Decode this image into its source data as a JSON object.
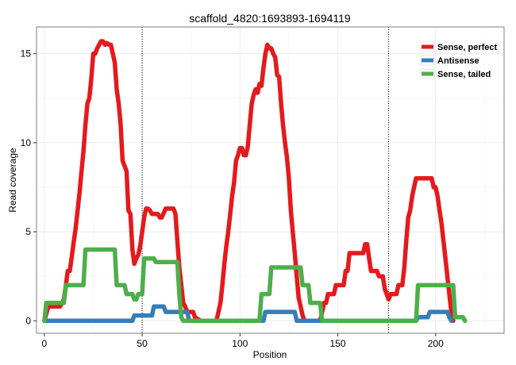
{
  "chart_data": {
    "type": "line",
    "title": "scaffold_4820:1693893-1694119",
    "xlabel": "Position",
    "ylabel": "Read coverage",
    "xlim": [
      -4,
      235
    ],
    "ylim": [
      -0.7,
      16.5
    ],
    "x_ticks": [
      0,
      50,
      100,
      150,
      200
    ],
    "y_ticks": [
      0,
      5,
      10,
      15
    ],
    "grid": true,
    "legend_position": "top-right",
    "vlines": [
      50,
      176
    ],
    "series": [
      {
        "name": "Sense, perfect",
        "color": "#e41a1c",
        "points": [
          [
            0,
            0
          ],
          [
            2,
            0.8
          ],
          [
            8,
            0.8
          ],
          [
            10,
            1.2
          ],
          [
            11,
            2
          ],
          [
            12,
            2.8
          ],
          [
            13,
            2.8
          ],
          [
            14,
            3.6
          ],
          [
            15,
            4.4
          ],
          [
            16,
            5.2
          ],
          [
            17,
            6.2
          ],
          [
            18,
            7.2
          ],
          [
            19,
            8.4
          ],
          [
            20,
            9.5
          ],
          [
            21,
            11
          ],
          [
            22,
            12.2
          ],
          [
            23,
            12.5
          ],
          [
            24,
            13.6
          ],
          [
            25,
            15
          ],
          [
            26,
            15
          ],
          [
            27,
            15.3
          ],
          [
            28,
            15.5
          ],
          [
            29,
            15.7
          ],
          [
            30,
            15.7
          ],
          [
            31,
            15.5
          ],
          [
            32,
            15.6
          ],
          [
            33,
            15.5
          ],
          [
            34,
            15.5
          ],
          [
            35,
            15
          ],
          [
            36,
            14.5
          ],
          [
            37,
            13
          ],
          [
            38,
            12.2
          ],
          [
            39,
            11
          ],
          [
            40,
            9
          ],
          [
            41,
            8.7
          ],
          [
            42,
            8.4
          ],
          [
            43,
            6.2
          ],
          [
            44,
            6
          ],
          [
            45,
            4
          ],
          [
            46,
            3.2
          ],
          [
            47,
            3.5
          ],
          [
            48,
            3.7
          ],
          [
            49,
            4.2
          ],
          [
            50,
            5
          ],
          [
            51,
            5.8
          ],
          [
            52,
            6.3
          ],
          [
            53,
            6.3
          ],
          [
            54,
            6.2
          ],
          [
            55,
            6
          ],
          [
            58,
            6
          ],
          [
            59,
            5.8
          ],
          [
            60,
            5.8
          ],
          [
            62,
            6.3
          ],
          [
            66,
            6.3
          ],
          [
            67,
            6
          ],
          [
            68,
            4.5
          ],
          [
            69,
            3
          ],
          [
            70,
            2
          ],
          [
            71,
            1
          ],
          [
            72,
            0.8
          ],
          [
            73,
            0.5
          ],
          [
            76,
            0.5
          ],
          [
            77,
            0.2
          ],
          [
            80,
            0
          ],
          [
            88,
            0
          ],
          [
            89,
            0.5
          ],
          [
            90,
            1
          ],
          [
            91,
            2
          ],
          [
            92,
            3.2
          ],
          [
            93,
            4.2
          ],
          [
            94,
            5
          ],
          [
            95,
            6
          ],
          [
            96,
            7
          ],
          [
            97,
            7.8
          ],
          [
            98,
            9
          ],
          [
            99,
            9.3
          ],
          [
            100,
            9.7
          ],
          [
            101,
            9.7
          ],
          [
            102,
            9.3
          ],
          [
            103,
            9.3
          ],
          [
            104,
            9.8
          ],
          [
            105,
            11
          ],
          [
            106,
            12.2
          ],
          [
            107,
            12.7
          ],
          [
            108,
            13
          ],
          [
            109,
            12.8
          ],
          [
            110,
            13.3
          ],
          [
            111,
            13.2
          ],
          [
            112,
            14.2
          ],
          [
            113,
            15
          ],
          [
            114,
            15.5
          ],
          [
            115,
            15.3
          ],
          [
            116,
            15.3
          ],
          [
            117,
            15
          ],
          [
            118,
            14.8
          ],
          [
            119,
            13.8
          ],
          [
            120,
            13.7
          ],
          [
            121,
            12.2
          ],
          [
            122,
            11
          ],
          [
            123,
            10
          ],
          [
            124,
            9.2
          ],
          [
            125,
            8
          ],
          [
            126,
            6.2
          ],
          [
            127,
            5
          ],
          [
            128,
            3.8
          ],
          [
            129,
            2.5
          ],
          [
            130,
            1.3
          ],
          [
            131,
            0.8
          ],
          [
            132,
            0.3
          ],
          [
            133,
            0
          ],
          [
            141,
            0
          ],
          [
            142,
            0.5
          ],
          [
            143,
            1
          ],
          [
            144,
            1
          ],
          [
            145,
            1.5
          ],
          [
            148,
            1.5
          ],
          [
            149,
            2
          ],
          [
            153,
            2
          ],
          [
            154,
            2.8
          ],
          [
            155,
            2.8
          ],
          [
            156,
            3.8
          ],
          [
            163,
            3.8
          ],
          [
            164,
            4.3
          ],
          [
            165,
            4.3
          ],
          [
            166,
            3.5
          ],
          [
            167,
            2.8
          ],
          [
            170,
            2.8
          ],
          [
            171,
            2.5
          ],
          [
            173,
            2.5
          ],
          [
            174,
            1.8
          ],
          [
            175,
            1.5
          ],
          [
            176,
            1.2
          ],
          [
            177,
            1.5
          ],
          [
            180,
            1.5
          ],
          [
            181,
            2
          ],
          [
            183,
            2
          ],
          [
            184,
            3
          ],
          [
            185,
            4.5
          ],
          [
            186,
            5.8
          ],
          [
            187,
            6.2
          ],
          [
            188,
            7
          ],
          [
            189,
            7.5
          ],
          [
            190,
            8
          ],
          [
            198,
            8
          ],
          [
            199,
            7.5
          ],
          [
            200,
            7.5
          ],
          [
            201,
            7
          ],
          [
            202,
            6.2
          ],
          [
            203,
            5.5
          ],
          [
            204,
            4.5
          ],
          [
            205,
            3.5
          ],
          [
            206,
            2.5
          ],
          [
            207,
            1.5
          ],
          [
            208,
            0.5
          ],
          [
            209,
            0
          ]
        ]
      },
      {
        "name": "Antisense",
        "color": "#377eb8",
        "points": [
          [
            0,
            0
          ],
          [
            45,
            0
          ],
          [
            46,
            0.3
          ],
          [
            55,
            0.3
          ],
          [
            56,
            0.8
          ],
          [
            61,
            0.8
          ],
          [
            62,
            0.5
          ],
          [
            73,
            0.5
          ],
          [
            74,
            0
          ],
          [
            112,
            0
          ],
          [
            113,
            0.5
          ],
          [
            128,
            0.5
          ],
          [
            129,
            0
          ],
          [
            190,
            0
          ],
          [
            191,
            0.2
          ],
          [
            196,
            0.2
          ],
          [
            197,
            0.5
          ],
          [
            206,
            0.5
          ],
          [
            207,
            0.2
          ],
          [
            208,
            0
          ]
        ]
      },
      {
        "name": "Sense, tailed",
        "color": "#4daf4a",
        "points": [
          [
            0,
            0
          ],
          [
            1,
            1
          ],
          [
            10,
            1
          ],
          [
            11,
            2
          ],
          [
            20,
            2
          ],
          [
            21,
            4
          ],
          [
            36,
            4
          ],
          [
            37,
            2
          ],
          [
            41,
            2
          ],
          [
            42,
            1.5
          ],
          [
            45,
            1.5
          ],
          [
            46,
            1.2
          ],
          [
            47,
            1.2
          ],
          [
            48,
            1.5
          ],
          [
            50,
            1.5
          ],
          [
            51,
            3.5
          ],
          [
            56,
            3.5
          ],
          [
            57,
            3.3
          ],
          [
            68,
            3.3
          ],
          [
            69,
            1.5
          ],
          [
            70,
            0.2
          ],
          [
            71,
            0
          ],
          [
            110,
            0
          ],
          [
            111,
            1.5
          ],
          [
            115,
            1.5
          ],
          [
            116,
            3
          ],
          [
            131,
            3
          ],
          [
            132,
            2
          ],
          [
            135,
            2
          ],
          [
            136,
            1
          ],
          [
            141,
            1
          ],
          [
            142,
            0
          ],
          [
            190,
            0
          ],
          [
            191,
            2
          ],
          [
            209,
            2
          ],
          [
            210,
            0.2
          ],
          [
            214,
            0.2
          ],
          [
            215,
            0
          ]
        ]
      }
    ]
  }
}
